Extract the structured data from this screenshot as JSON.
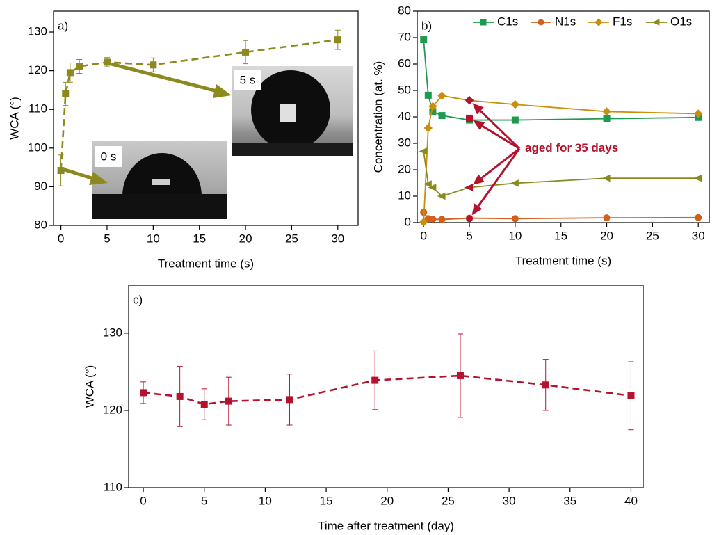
{
  "chart_data": [
    {
      "type": "line",
      "label": "a)",
      "xlabel": "Treatment time (s)",
      "ylabel": "WCA (°)",
      "x": [
        0,
        0.5,
        1,
        2,
        5,
        10,
        20,
        30
      ],
      "xlim": [
        -0.8,
        32.2
      ],
      "xticks": [
        0,
        5,
        10,
        15,
        20,
        25,
        30
      ],
      "ylim": [
        80,
        135.4
      ],
      "yticks": [
        80,
        90,
        100,
        110,
        120,
        130
      ],
      "series": [
        {
          "color": "#8c8a1f",
          "marker": "square",
          "dash": true,
          "values": [
            94.2,
            114,
            119.5,
            121.1,
            122.2,
            121.5,
            124.8,
            128
          ],
          "errors": [
            4,
            3,
            2.5,
            1.8,
            1.2,
            1.8,
            3,
            2.5
          ]
        }
      ],
      "insets": [
        {
          "label": "0 s"
        },
        {
          "label": "5 s"
        }
      ]
    },
    {
      "type": "line",
      "label": "b)",
      "xlabel": "Treatment time (s)",
      "ylabel": "Concentration (at. %)",
      "x": [
        0,
        0.5,
        1,
        2,
        5,
        10,
        20,
        30
      ],
      "xlim": [
        -0.7,
        31.2
      ],
      "xticks": [
        0,
        5,
        10,
        15,
        20,
        25,
        30
      ],
      "ylim": [
        0,
        80
      ],
      "yticks": [
        0,
        10,
        20,
        30,
        40,
        50,
        60,
        70,
        80
      ],
      "series": [
        {
          "name": "C1s",
          "color": "#1e9a50",
          "marker": "square",
          "values": [
            69.2,
            48.2,
            42,
            40.5,
            38.8,
            38.8,
            39.3,
            39.8
          ]
        },
        {
          "name": "N1s",
          "color": "#d35f1a",
          "marker": "circle",
          "values": [
            3.9,
            1.5,
            1.3,
            1.2,
            1.7,
            1.5,
            1.8,
            1.9
          ]
        },
        {
          "name": "F1s",
          "color": "#c8900a",
          "marker": "diamond",
          "values": [
            0.2,
            35.8,
            44,
            48,
            46.2,
            44.7,
            42,
            41.2
          ]
        },
        {
          "name": "O1s",
          "color": "#8a8a1e",
          "marker": "triangle",
          "values": [
            27,
            14.6,
            13.3,
            10,
            13.3,
            14.9,
            16.8,
            16.8
          ]
        }
      ],
      "aged": {
        "label": "aged for 35 days",
        "color": "#b5122e",
        "x": 5,
        "values": [
          39.5,
          1.5,
          46.3,
          13.3
        ]
      }
    },
    {
      "type": "line",
      "label": "c)",
      "xlabel": "Time after treatment (day)",
      "ylabel": "WCA (°)",
      "x": [
        0,
        3,
        5,
        7,
        12,
        19,
        26,
        33,
        40
      ],
      "xlim": [
        -1.2,
        41
      ],
      "xticks": [
        0,
        5,
        10,
        15,
        20,
        25,
        30,
        35,
        40
      ],
      "ylim": [
        110,
        136.2
      ],
      "yticks": [
        110,
        120,
        130
      ],
      "series": [
        {
          "color": "#b5122e",
          "marker": "square",
          "dash": true,
          "values": [
            122.3,
            121.8,
            120.8,
            121.2,
            121.4,
            123.9,
            124.5,
            123.3,
            121.9
          ],
          "errors": [
            1.4,
            3.9,
            2.0,
            3.1,
            3.3,
            3.8,
            5.4,
            3.3,
            4.4
          ]
        }
      ]
    }
  ]
}
